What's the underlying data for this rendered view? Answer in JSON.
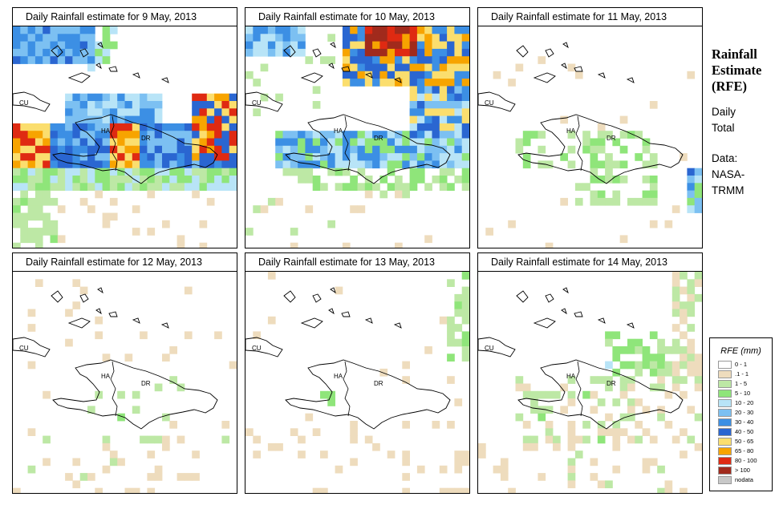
{
  "panels": [
    {
      "title": "Daily Rainfall estimate for  9 May, 2013"
    },
    {
      "title": "Daily Rainfall estimate for  10 May, 2013"
    },
    {
      "title": "Daily Rainfall estimate for  11 May, 2013"
    },
    {
      "title": "Daily Rainfall estimate for  12 May, 2013"
    },
    {
      "title": "Daily Rainfall estimate for  13 May, 2013"
    },
    {
      "title": "Daily Rainfall estimate for  14 May, 2013"
    }
  ],
  "map_labels": {
    "cuba": "CU",
    "haiti": "HA",
    "dominican_republic": "DR"
  },
  "side": {
    "title_line1": "Rainfall",
    "title_line2": "Estimate",
    "title_line3": "(RFE)",
    "period_line1": "Daily",
    "period_line2": "Total",
    "source_line1": "Data:",
    "source_line2": "NASA-",
    "source_line3": "TRMM"
  },
  "legend": {
    "title": "RFE (mm)",
    "classes": [
      {
        "label": "0 - 1",
        "color": "#ffffff"
      },
      {
        "label": ".1 - 1",
        "color": "#eedcbd"
      },
      {
        "label": "1 - 5",
        "color": "#bde8a5"
      },
      {
        "label": "5 - 10",
        "color": "#8fe57a"
      },
      {
        "label": "10 - 20",
        "color": "#b8e4f7"
      },
      {
        "label": "20 - 30",
        "color": "#7cc0f2"
      },
      {
        "label": "30 - 40",
        "color": "#3c8fe4"
      },
      {
        "label": "40 - 50",
        "color": "#2a66d1"
      },
      {
        "label": "50 - 65",
        "color": "#fbde6e"
      },
      {
        "label": "65 - 80",
        "color": "#f7a400"
      },
      {
        "label": "80 - 100",
        "color": "#df2a12"
      },
      {
        "label": "> 100",
        "color": "#a12a1c"
      },
      {
        "label": "nodata",
        "color": "#c8c8c8"
      }
    ]
  }
}
